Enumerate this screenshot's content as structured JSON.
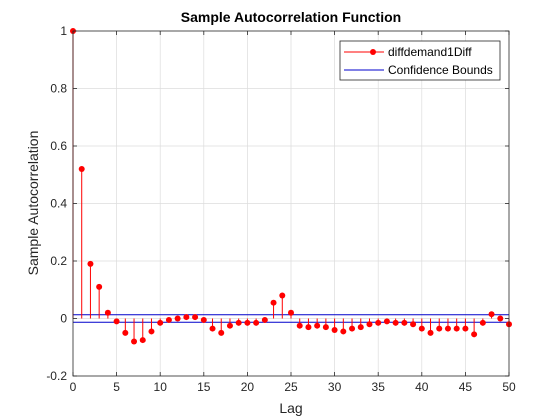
{
  "chart_data": {
    "type": "stem",
    "title": "Sample Autocorrelation Function",
    "xlabel": "Lag",
    "ylabel": "Sample Autocorrelation",
    "xlim": [
      0,
      50
    ],
    "ylim": [
      -0.2,
      1
    ],
    "xticks": [
      0,
      5,
      10,
      15,
      20,
      25,
      30,
      35,
      40,
      45,
      50
    ],
    "yticks": [
      -0.2,
      0,
      0.2,
      0.4,
      0.6,
      0.8,
      1
    ],
    "xtick_labels": [
      "0",
      "5",
      "10",
      "15",
      "20",
      "25",
      "30",
      "35",
      "40",
      "45",
      "50"
    ],
    "ytick_labels": [
      "-0.2",
      "0",
      "0.2",
      "0.4",
      "0.6",
      "0.8",
      "1"
    ],
    "grid": true,
    "legend_position": "top-right",
    "series": [
      {
        "name": "diffdemand1Diff",
        "color": "#ff0000",
        "x": [
          0,
          1,
          2,
          3,
          4,
          5,
          6,
          7,
          8,
          9,
          10,
          11,
          12,
          13,
          14,
          15,
          16,
          17,
          18,
          19,
          20,
          21,
          22,
          23,
          24,
          25,
          26,
          27,
          28,
          29,
          30,
          31,
          32,
          33,
          34,
          35,
          36,
          37,
          38,
          39,
          40,
          41,
          42,
          43,
          44,
          45,
          46,
          47,
          48,
          49,
          50
        ],
        "values": [
          1.0,
          0.52,
          0.19,
          0.11,
          0.02,
          -0.01,
          -0.05,
          -0.08,
          -0.075,
          -0.045,
          -0.015,
          -0.005,
          0.0,
          0.005,
          0.005,
          -0.005,
          -0.035,
          -0.05,
          -0.025,
          -0.015,
          -0.015,
          -0.015,
          -0.005,
          0.055,
          0.08,
          0.02,
          -0.025,
          -0.03,
          -0.025,
          -0.03,
          -0.04,
          -0.045,
          -0.035,
          -0.03,
          -0.02,
          -0.015,
          -0.01,
          -0.015,
          -0.015,
          -0.02,
          -0.035,
          -0.05,
          -0.035,
          -0.035,
          -0.035,
          -0.035,
          -0.055,
          -0.015,
          0.015,
          0.0,
          -0.02
        ]
      }
    ],
    "confidence_bounds": {
      "name": "Confidence Bounds",
      "color": "#0000cc",
      "upper": 0.013,
      "lower": -0.013
    }
  }
}
